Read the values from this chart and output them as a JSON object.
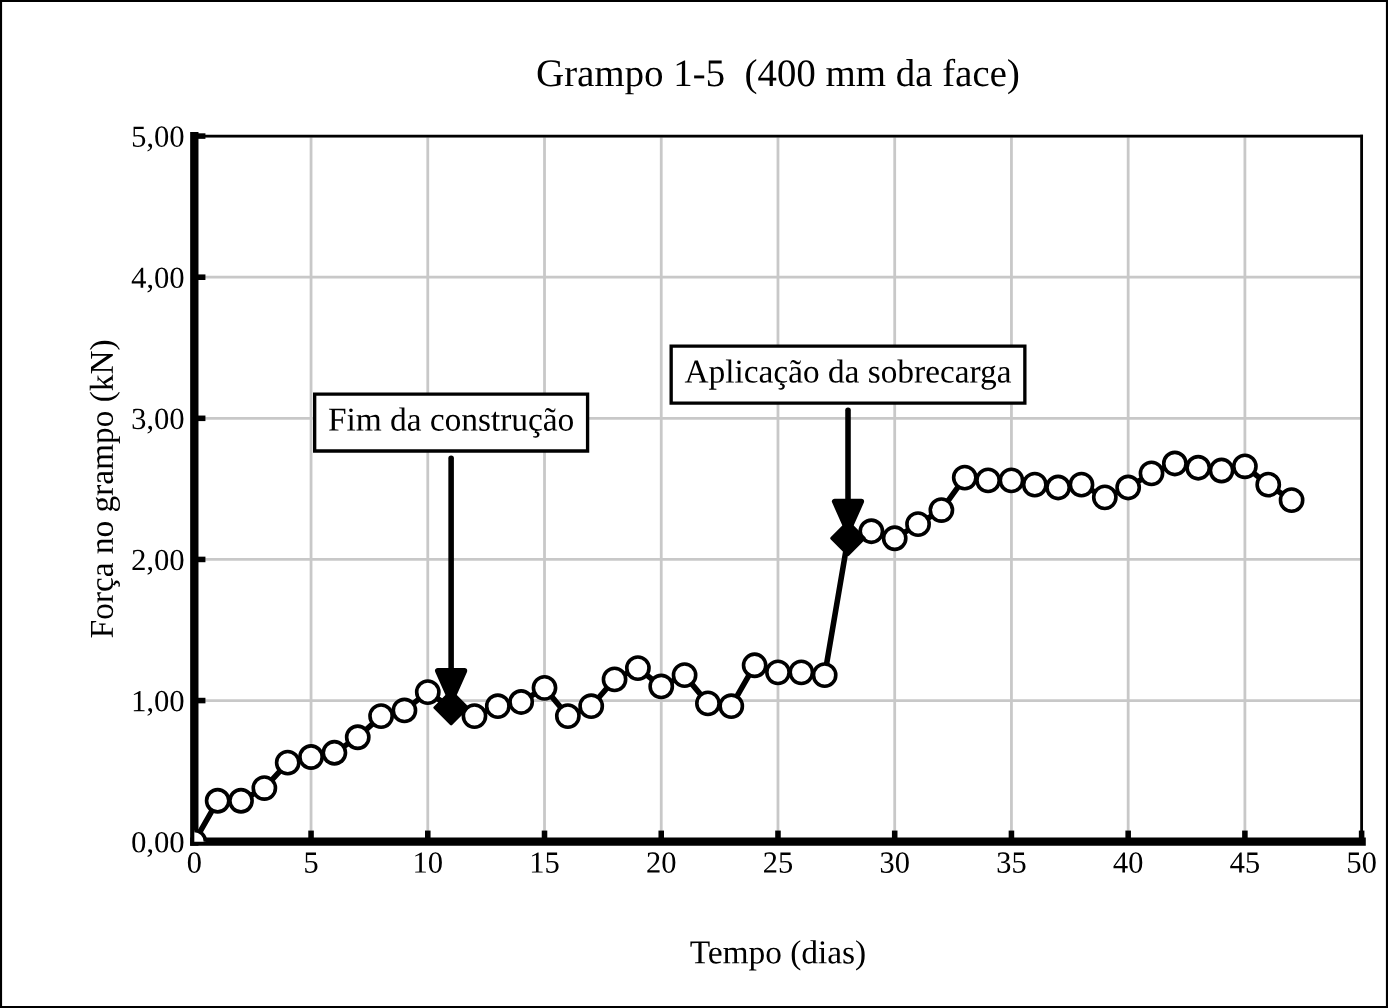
{
  "chart_data": {
    "type": "line",
    "title": "Grampo 1-5  (400 mm da face)",
    "xlabel": "Tempo (dias)",
    "ylabel": "Força no grampo (kN)",
    "series": [
      {
        "type": "line",
        "color": "#000000",
        "marker": "circle",
        "x": [
          0,
          1,
          2,
          3,
          4,
          5,
          6,
          7,
          8,
          9,
          10,
          11,
          12,
          13,
          14,
          15,
          16,
          17,
          18,
          19,
          20,
          21,
          22,
          23,
          24,
          25,
          26,
          27,
          28,
          29,
          30,
          31,
          32,
          33,
          34,
          35,
          36,
          37,
          38,
          39,
          40,
          41,
          42,
          43,
          44,
          45,
          46,
          47
        ],
        "values": [
          0,
          0.29,
          0.29,
          0.38,
          0.56,
          0.6,
          0.63,
          0.74,
          0.89,
          0.93,
          1.06,
          0.95,
          0.89,
          0.96,
          0.99,
          1.09,
          0.89,
          0.96,
          1.15,
          1.23,
          1.1,
          1.18,
          0.98,
          0.96,
          1.25,
          1.2,
          1.2,
          1.18,
          2.15,
          2.2,
          2.15,
          2.25,
          2.35,
          2.58,
          2.56,
          2.56,
          2.53,
          2.51,
          2.53,
          2.44,
          2.51,
          2.61,
          2.68,
          2.65,
          2.63,
          2.66,
          2.53,
          2.42
        ]
      },
      {
        "type": "scatter",
        "color": "#000000",
        "marker": "diamond",
        "x": [
          11,
          28
        ],
        "values": [
          0.95,
          2.15
        ]
      }
    ],
    "annotations": [
      {
        "text": "Fim da construção",
        "x": 11,
        "y": 0.95
      },
      {
        "text": "Aplicação da sobrecarga",
        "x": 28,
        "y": 2.15
      }
    ],
    "xlim": [
      0,
      50
    ],
    "xticks": [
      0,
      5,
      10,
      15,
      20,
      25,
      30,
      35,
      40,
      45,
      50
    ],
    "ylim": [
      0,
      5
    ],
    "yticks": [
      {
        "value": 0,
        "label": "0,00"
      },
      {
        "value": 1,
        "label": "1,00"
      },
      {
        "value": 2,
        "label": "2,00"
      },
      {
        "value": 3,
        "label": "3,00"
      },
      {
        "value": 4,
        "label": "4,00"
      },
      {
        "value": 5,
        "label": "5,00"
      }
    ],
    "grid": true,
    "legend": false
  }
}
